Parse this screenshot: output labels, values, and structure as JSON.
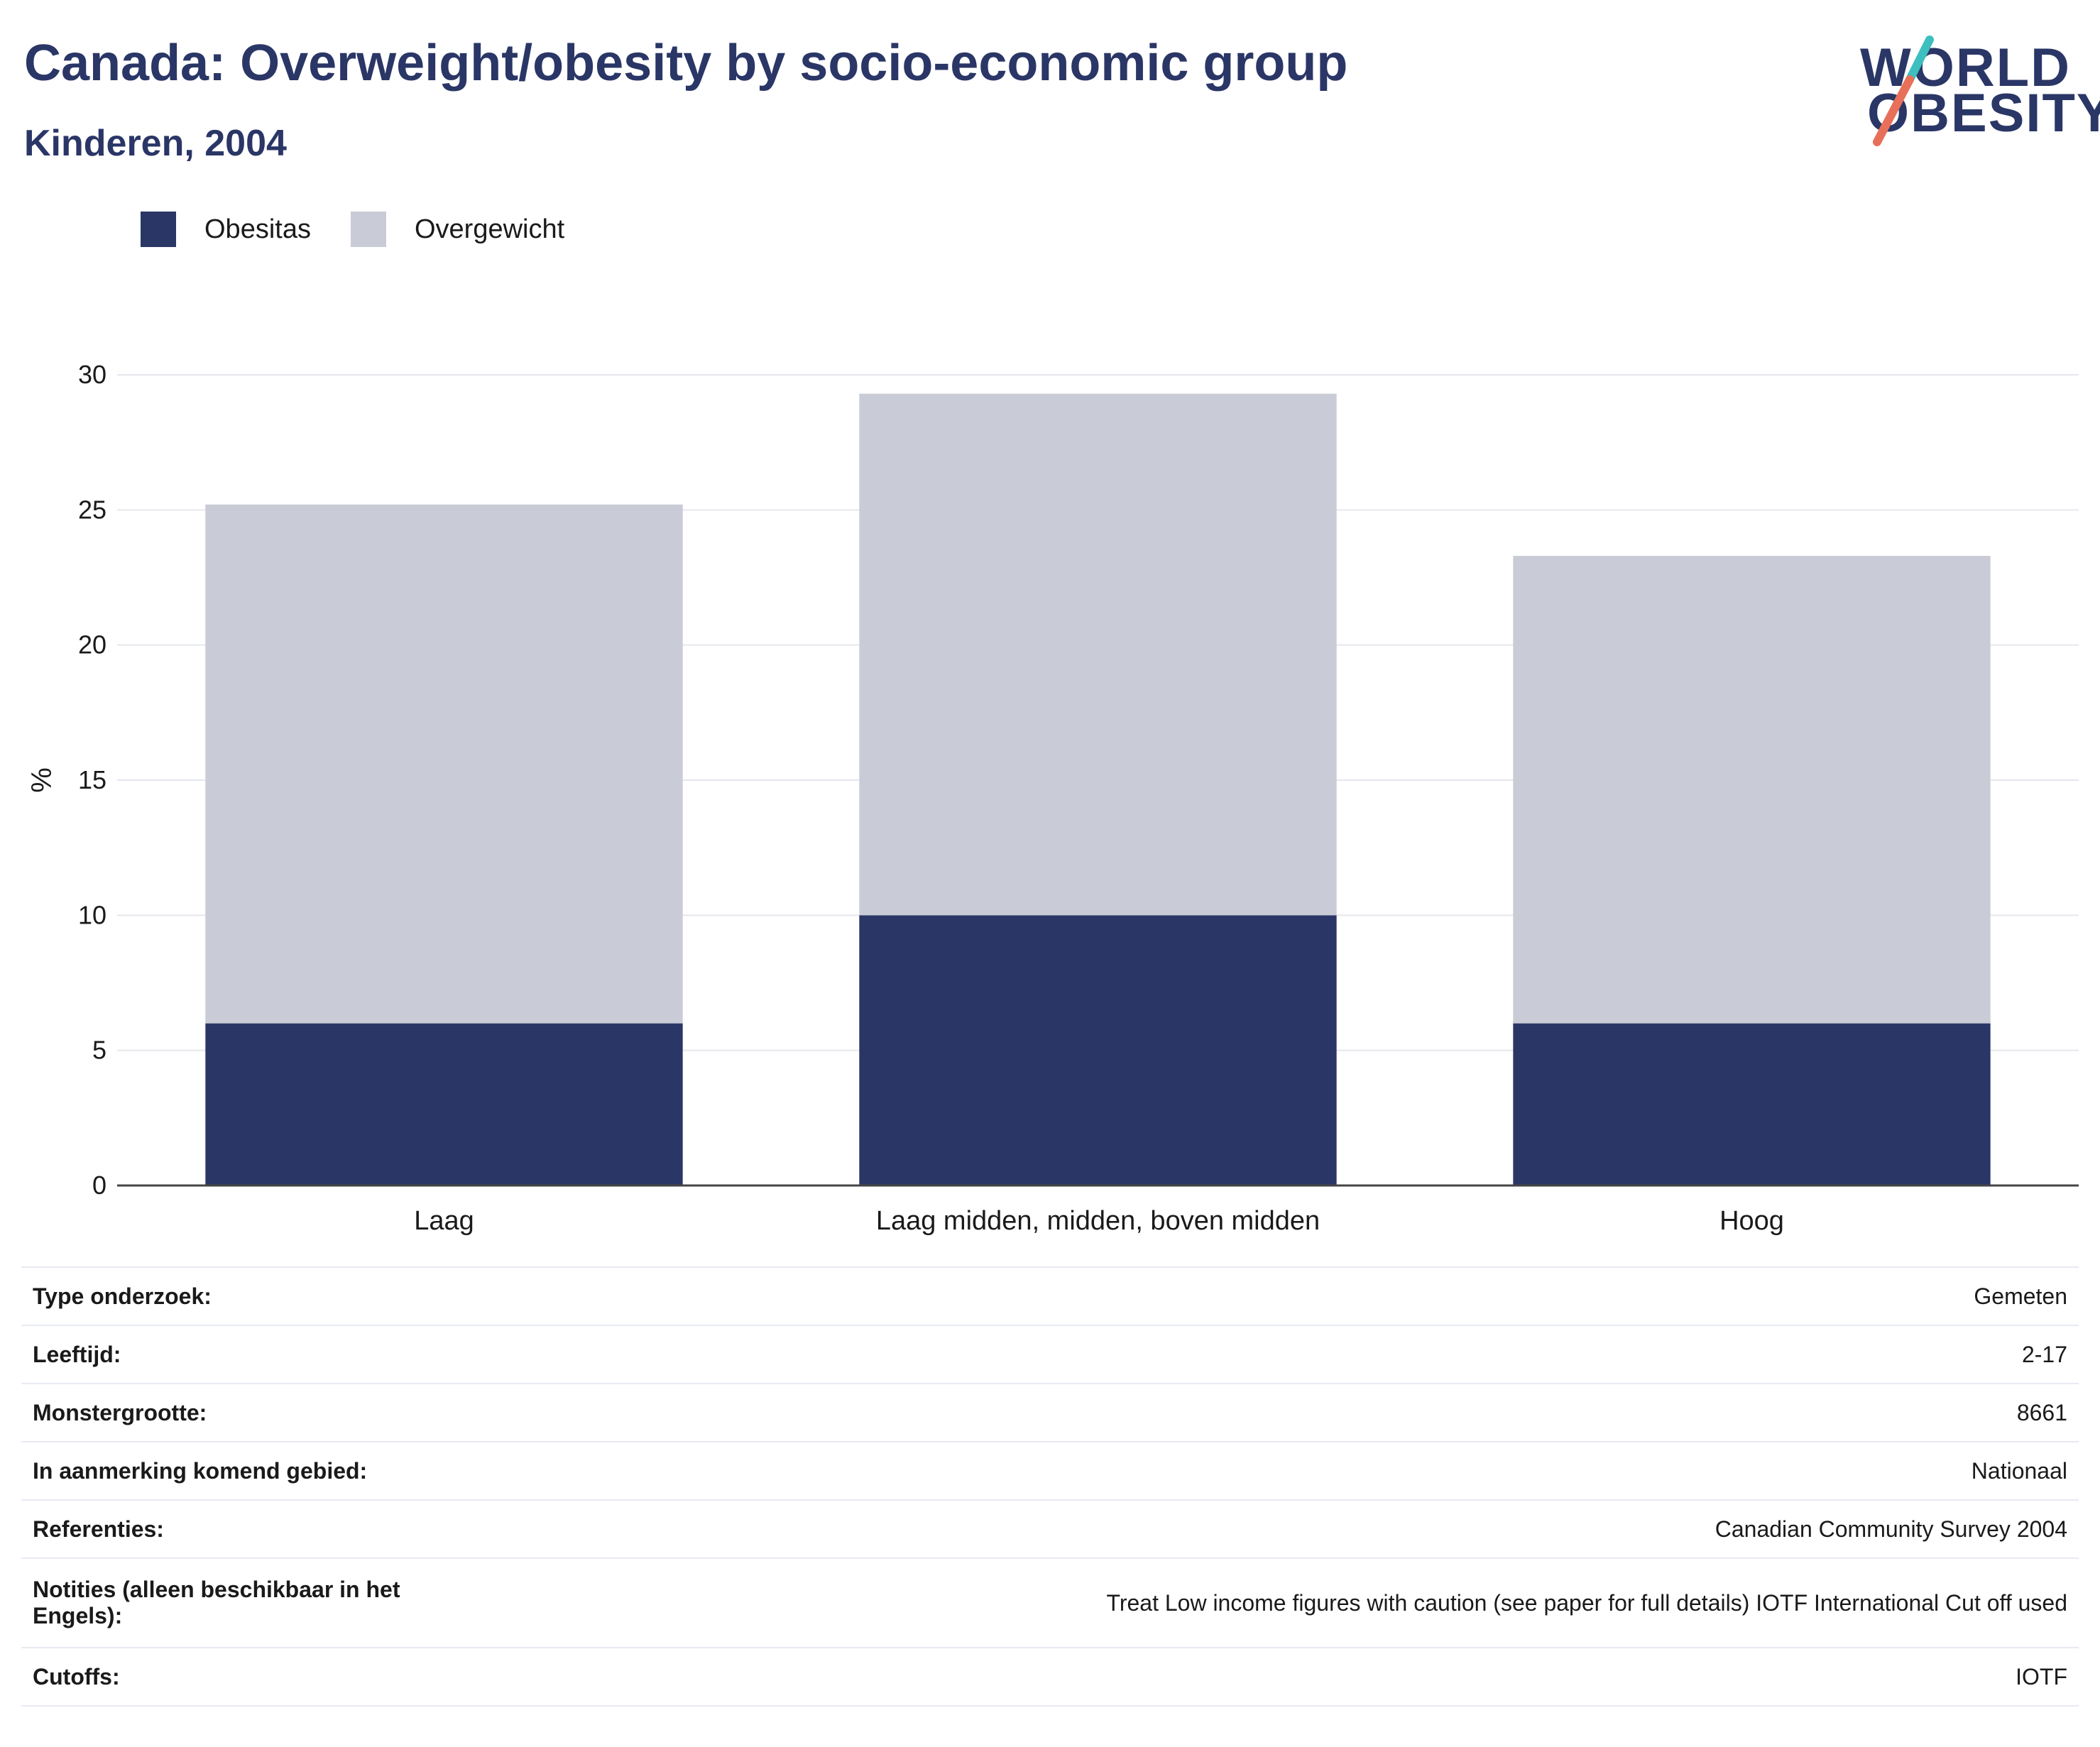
{
  "header": {
    "title": "Canada: Overweight/obesity by socio-economic group",
    "subtitle": "Kinderen, 2004"
  },
  "logo": {
    "line1": "WORLD",
    "line2": "OBESITY",
    "colors": {
      "navy": "#2a3666",
      "teal": "#3dbfbf",
      "coral": "#e8705a"
    }
  },
  "legend": [
    {
      "label": "Obesitas",
      "color": "#2a3666"
    },
    {
      "label": "Overgewicht",
      "color": "#c9cbd6"
    }
  ],
  "chart_data": {
    "type": "bar",
    "stacked": true,
    "categories": [
      "Laag",
      "Laag midden, midden, boven midden",
      "Hoog"
    ],
    "series": [
      {
        "name": "Obesitas",
        "color": "#2a3666",
        "values": [
          6,
          10,
          6
        ]
      },
      {
        "name": "Overgewicht",
        "color": "#c9cbd6",
        "values": [
          19.2,
          19.3,
          17.3
        ]
      }
    ],
    "ylabel": "%",
    "ylim": [
      0,
      30
    ],
    "yticks": [
      0,
      5,
      10,
      15,
      20,
      25,
      30
    ],
    "grid": true,
    "legend_position": "top-left"
  },
  "info_table": [
    {
      "key": "Type onderzoek:",
      "value": "Gemeten"
    },
    {
      "key": "Leeftijd:",
      "value": "2-17"
    },
    {
      "key": "Monstergrootte:",
      "value": "8661"
    },
    {
      "key": "In aanmerking komend gebied:",
      "value": "Nationaal"
    },
    {
      "key": "Referenties:",
      "value": "Canadian Community Survey 2004"
    },
    {
      "key": "Notities (alleen beschikbaar in het Engels):",
      "value": "Treat Low income figures with caution (see paper for full details) IOTF International Cut off used"
    },
    {
      "key": "Cutoffs:",
      "value": "IOTF"
    }
  ]
}
